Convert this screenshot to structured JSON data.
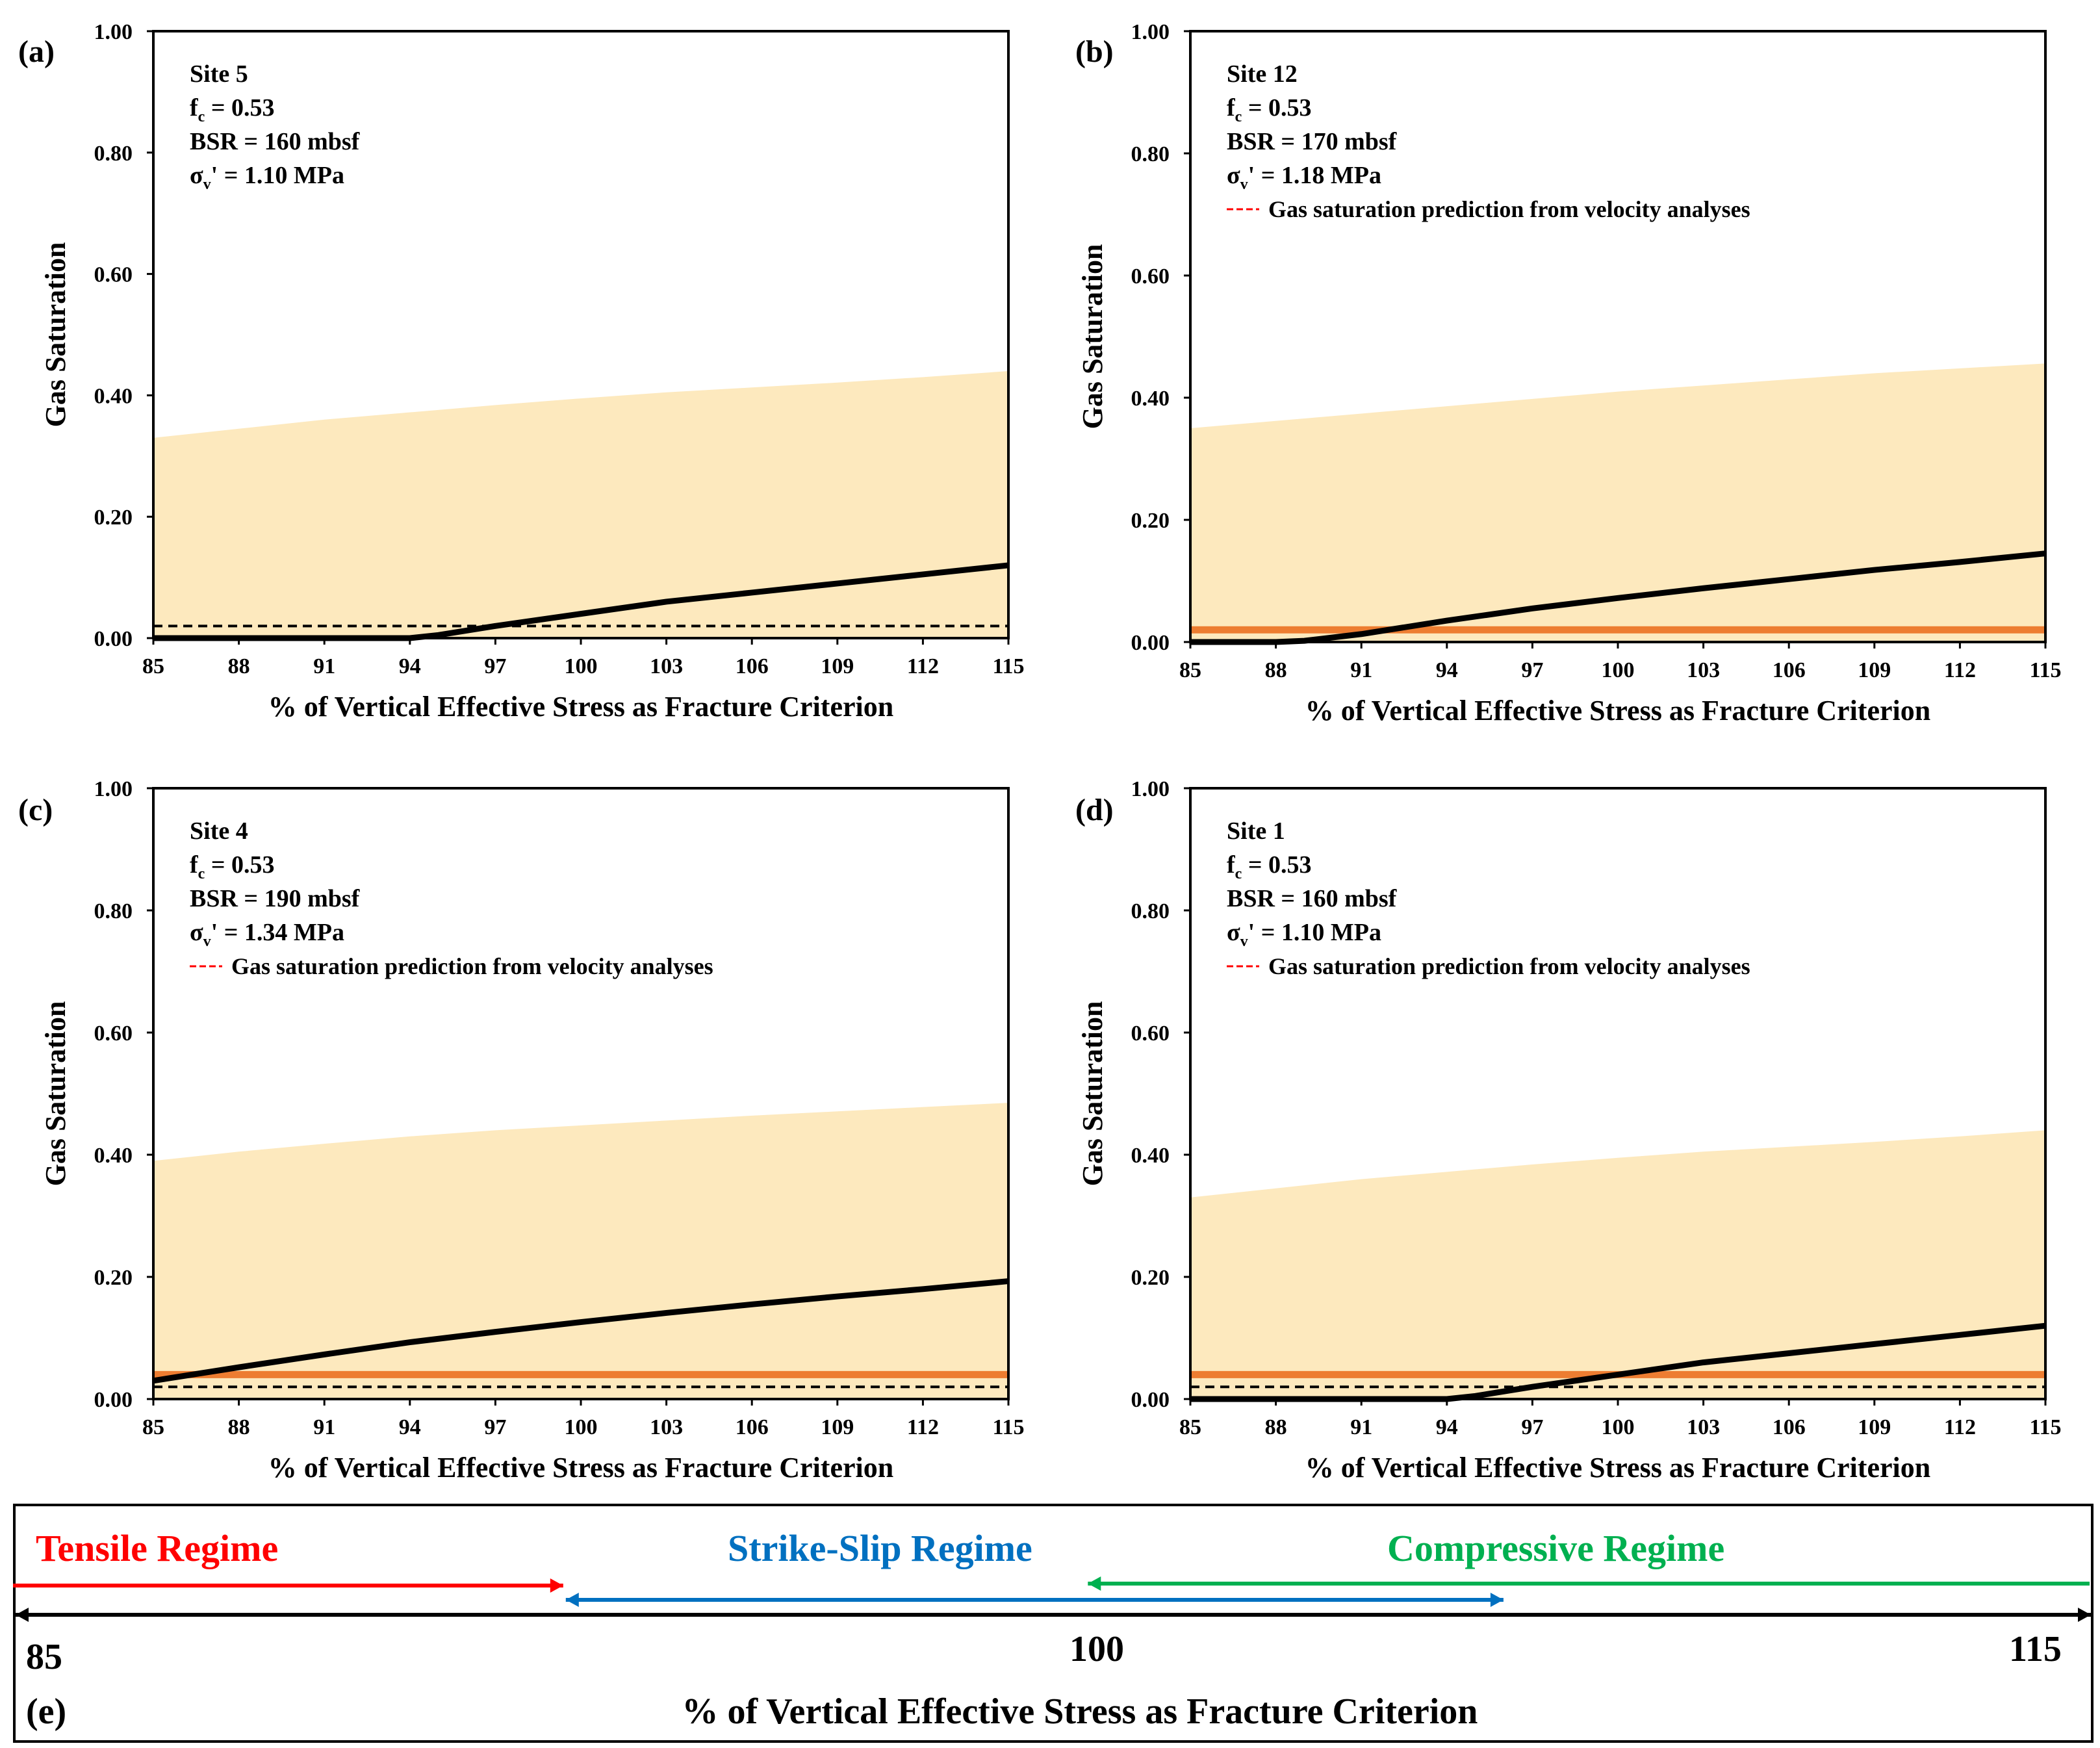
{
  "colors": {
    "band": "#FDE9BE",
    "curve": "#000000",
    "velocity": "#ED7D31",
    "dashed": "#000000",
    "legend_dash": "#FF0000",
    "tensile": "#FF0000",
    "strike_slip": "#0070C0",
    "compressive": "#00B050"
  },
  "chart_data": [
    {
      "type": "area",
      "panel": "(a)",
      "title": "",
      "xlabel": "% of Vertical Effective Stress as Fracture Criterion",
      "ylabel": "Gas Saturation",
      "xlim": [
        85,
        115
      ],
      "ylim": [
        0,
        1
      ],
      "xticks": [
        "85",
        "88",
        "91",
        "94",
        "97",
        "100",
        "103",
        "106",
        "109",
        "112",
        "115"
      ],
      "yticks": [
        "0.00",
        "0.20",
        "0.40",
        "0.60",
        "0.80",
        "1.00"
      ],
      "annotations": {
        "site": "Site 5",
        "fc_prefix": "f",
        "fc_sub": "c",
        "fc_value": " = 0.53",
        "bsr": "BSR = 160 mbsf",
        "sig_prefix": "σ",
        "sig_sub": "v",
        "sig_value": "' = 1.10 MPa"
      },
      "legend": "",
      "x": [
        85,
        88,
        91,
        94,
        95,
        97,
        100,
        103,
        106,
        109,
        112,
        115
      ],
      "band_upper": [
        0.33,
        0.345,
        0.36,
        0.372,
        0.376,
        0.384,
        0.395,
        0.405,
        0.413,
        0.421,
        0.43,
        0.44
      ],
      "curve": [
        0,
        0,
        0,
        0,
        0.005,
        0.02,
        0.04,
        0.06,
        0.075,
        0.09,
        0.105,
        0.12
      ],
      "velocity_line": null,
      "dashed_line": 0.02
    },
    {
      "type": "area",
      "panel": "(b)",
      "title": "",
      "xlabel": "% of Vertical Effective Stress as Fracture Criterion",
      "ylabel": "Gas Saturation",
      "xlim": [
        85,
        115
      ],
      "ylim": [
        0,
        1
      ],
      "xticks": [
        "85",
        "88",
        "91",
        "94",
        "97",
        "100",
        "103",
        "106",
        "109",
        "112",
        "115"
      ],
      "yticks": [
        "0.00",
        "0.20",
        "0.40",
        "0.60",
        "0.80",
        "1.00"
      ],
      "annotations": {
        "site": "Site 12",
        "fc_prefix": "f",
        "fc_sub": "c",
        "fc_value": " = 0.53",
        "bsr": "BSR = 170 mbsf",
        "sig_prefix": "σ",
        "sig_sub": "v",
        "sig_value": "' = 1.18 MPa"
      },
      "legend": "Gas saturation prediction from velocity analyses",
      "x": [
        85,
        88,
        89,
        91,
        94,
        97,
        100,
        103,
        106,
        109,
        112,
        115
      ],
      "band_upper": [
        0.35,
        0.362,
        0.366,
        0.374,
        0.386,
        0.398,
        0.41,
        0.42,
        0.43,
        0.44,
        0.448,
        0.456
      ],
      "curve": [
        0,
        0,
        0.002,
        0.013,
        0.035,
        0.055,
        0.072,
        0.088,
        0.103,
        0.118,
        0.131,
        0.145
      ],
      "velocity_line": 0.02,
      "dashed_line": null
    },
    {
      "type": "area",
      "panel": "(c)",
      "title": "",
      "xlabel": "% of Vertical Effective Stress as Fracture Criterion",
      "ylabel": "Gas Saturation",
      "xlim": [
        85,
        115
      ],
      "ylim": [
        0,
        1
      ],
      "xticks": [
        "85",
        "88",
        "91",
        "94",
        "97",
        "100",
        "103",
        "106",
        "109",
        "112",
        "115"
      ],
      "yticks": [
        "0.00",
        "0.20",
        "0.40",
        "0.60",
        "0.80",
        "1.00"
      ],
      "annotations": {
        "site": "Site 4",
        "fc_prefix": "f",
        "fc_sub": "c",
        "fc_value": " = 0.53",
        "bsr": "BSR = 190 mbsf",
        "sig_prefix": "σ",
        "sig_sub": "v",
        "sig_value": "' = 1.34 MPa"
      },
      "legend": "Gas saturation prediction from velocity analyses",
      "x": [
        85,
        88,
        91,
        94,
        97,
        100,
        103,
        106,
        109,
        112,
        115
      ],
      "band_upper": [
        0.39,
        0.405,
        0.418,
        0.43,
        0.44,
        0.448,
        0.456,
        0.464,
        0.471,
        0.478,
        0.485
      ],
      "curve": [
        0.03,
        0.052,
        0.073,
        0.093,
        0.11,
        0.126,
        0.141,
        0.155,
        0.168,
        0.18,
        0.193
      ],
      "velocity_line": 0.04,
      "dashed_line": 0.02
    },
    {
      "type": "area",
      "panel": "(d)",
      "title": "",
      "xlabel": "% of Vertical Effective Stress as Fracture Criterion",
      "ylabel": "Gas Saturation",
      "xlim": [
        85,
        115
      ],
      "ylim": [
        0,
        1
      ],
      "xticks": [
        "85",
        "88",
        "91",
        "94",
        "97",
        "100",
        "103",
        "106",
        "109",
        "112",
        "115"
      ],
      "yticks": [
        "0.00",
        "0.20",
        "0.40",
        "0.60",
        "0.80",
        "1.00"
      ],
      "annotations": {
        "site": "Site 1",
        "fc_prefix": "f",
        "fc_sub": "c",
        "fc_value": " = 0.53",
        "bsr": "BSR = 160 mbsf",
        "sig_prefix": "σ",
        "sig_sub": "v",
        "sig_value": "' = 1.10 MPa"
      },
      "legend": "Gas saturation prediction from velocity analyses",
      "x": [
        85,
        88,
        91,
        94,
        95,
        97,
        100,
        103,
        106,
        109,
        112,
        115
      ],
      "band_upper": [
        0.33,
        0.345,
        0.36,
        0.372,
        0.376,
        0.384,
        0.395,
        0.405,
        0.413,
        0.421,
        0.43,
        0.44
      ],
      "curve": [
        0,
        0,
        0,
        0,
        0.005,
        0.02,
        0.04,
        0.06,
        0.075,
        0.09,
        0.105,
        0.12
      ],
      "velocity_line": 0.04,
      "dashed_line": 0.02
    }
  ],
  "regime": {
    "panel": "(e)",
    "tensile": {
      "label": "Tensile Regime",
      "from": 85,
      "to": 93
    },
    "strike_slip": {
      "label": "Strike-Slip Regime",
      "from": 93,
      "to": 106.5
    },
    "compressive": {
      "label": "Compressive Regime",
      "from": 100.5,
      "to": 115
    },
    "tick_85": "85",
    "tick_100": "100",
    "tick_115": "115",
    "xlabel": "% of Vertical Effective Stress as Fracture Criterion"
  }
}
